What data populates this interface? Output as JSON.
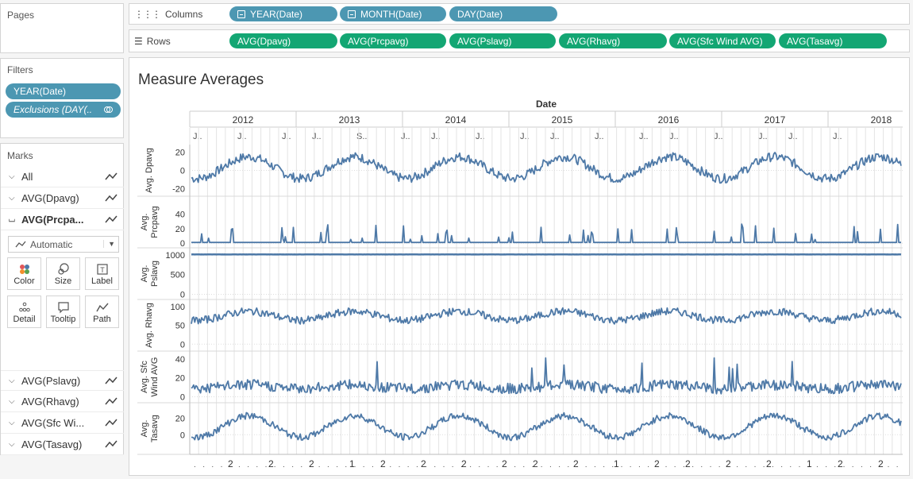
{
  "pages": {
    "title": "Pages"
  },
  "filters": {
    "title": "Filters",
    "items": [
      {
        "label": "YEAR(Date)"
      },
      {
        "label": "Exclusions (DAY(.."
      }
    ]
  },
  "marks": {
    "title": "Marks",
    "rows_top": [
      {
        "label": "All"
      },
      {
        "label": "AVG(Dpavg)"
      },
      {
        "label": "AVG(Prcpa..."
      }
    ],
    "mark_type": "Automatic",
    "buttons": [
      {
        "label": "Color",
        "icon": "color-icon"
      },
      {
        "label": "Size",
        "icon": "size-icon"
      },
      {
        "label": "Label",
        "icon": "label-icon"
      },
      {
        "label": "Detail",
        "icon": "detail-icon"
      },
      {
        "label": "Tooltip",
        "icon": "tooltip-icon"
      },
      {
        "label": "Path",
        "icon": "path-icon"
      }
    ],
    "rows_bottom": [
      {
        "label": "AVG(Pslavg)"
      },
      {
        "label": "AVG(Rhavg)"
      },
      {
        "label": "AVG(Sfc Wi..."
      },
      {
        "label": "AVG(Tasavg)"
      }
    ]
  },
  "columns_shelf": {
    "label": "Columns",
    "pills": [
      {
        "label": "YEAR(Date)"
      },
      {
        "label": "MONTH(Date)"
      },
      {
        "label": "DAY(Date)"
      }
    ]
  },
  "rows_shelf": {
    "label": "Rows",
    "pills": [
      {
        "label": "AVG(Dpavg)"
      },
      {
        "label": "AVG(Prcpavg)"
      },
      {
        "label": "AVG(Pslavg)"
      },
      {
        "label": "AVG(Rhavg)"
      },
      {
        "label": "AVG(Sfc Wind AVG)"
      },
      {
        "label": "AVG(Tasavg)"
      }
    ]
  },
  "colors": {
    "line": "#4e79a7",
    "dimension_pill": "#4c97b2",
    "measure_pill": "#13a673"
  },
  "chart_data": {
    "type": "line",
    "title": "Measure Averages",
    "xlabel": "Date",
    "years": [
      "2012",
      "2013",
      "2014",
      "2015",
      "2016",
      "2017",
      "2018"
    ],
    "month_header_marks": [
      "J..",
      "J..",
      "J..",
      "J..",
      "S..",
      "J..",
      "J..",
      "J..",
      "J..",
      "J..",
      "J..",
      "J..",
      "J..",
      "J..",
      "J..",
      "J..",
      "J.."
    ],
    "day_axis_marks": [
      "2",
      "2",
      "2",
      "1",
      "2",
      "2",
      "2",
      "2",
      "2",
      "2",
      "1",
      "2",
      "2",
      "2",
      "2",
      "1",
      "2",
      "2"
    ],
    "panels": [
      {
        "ylabel": "Avg. Dpavg",
        "ticks": [
          "20",
          "0",
          "-20"
        ],
        "ylim": [
          -25,
          25
        ],
        "pattern": "seasonal",
        "center": 3,
        "amp": 12,
        "noise": 5
      },
      {
        "ylabel": "Avg. Prcpavg",
        "ticks": [
          "40",
          "20",
          "0"
        ],
        "ylim": [
          -2,
          60
        ],
        "pattern": "spiky",
        "base": 1,
        "max_spike": 58
      },
      {
        "ylabel": "Avg. Pslavg",
        "ticks": [
          "1000",
          "500",
          "0"
        ],
        "ylim": [
          -50,
          1100
        ],
        "pattern": "flat",
        "center": 1013,
        "amp": 0,
        "noise": 5
      },
      {
        "ylabel": "Avg. Rhavg",
        "ticks": [
          "100",
          "50",
          "0"
        ],
        "ylim": [
          -10,
          110
        ],
        "pattern": "seasonal",
        "center": 75,
        "amp": 12,
        "noise": 10
      },
      {
        "ylabel": "Avg. Sfc Wind AVG",
        "ticks": [
          "40",
          "20",
          "0"
        ],
        "ylim": [
          -3,
          45
        ],
        "pattern": "noisy",
        "center": 9,
        "amp": 2,
        "noise": 8,
        "max_spike": 42
      },
      {
        "ylabel": "Avg. Tasavg",
        "ticks": [
          "20",
          "0"
        ],
        "ylim": [
          -20,
          35
        ],
        "pattern": "seasonal",
        "center": 10,
        "amp": 13,
        "noise": 4
      }
    ]
  }
}
